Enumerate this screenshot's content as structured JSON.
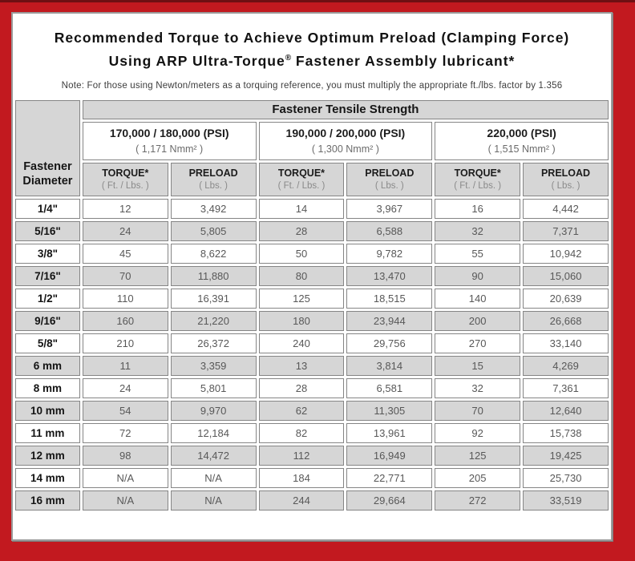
{
  "frame": {
    "red": "#c2191f",
    "top_line": "#6f1013",
    "gray_cell": "#d6d6d6",
    "border_gray": "#858585"
  },
  "title": {
    "line1": "Recommended Torque to Achieve Optimum Preload (Clamping Force)",
    "line2_pre": "Using ARP Ultra-Torque",
    "line2_sup": "®",
    "line2_post": " Fastener Assembly lubricant*",
    "note": "Note: For those using Newton/meters as a torquing reference, you must multiply the appropriate ft./lbs. factor by 1.356"
  },
  "table": {
    "corner_line1": "Fastener",
    "corner_line2": "Diameter",
    "tensile_header": "Fastener Tensile Strength",
    "strength_groups": [
      {
        "psi": "170,000 / 180,000 (PSI)",
        "nmm": "( 1,171 Nmm² )"
      },
      {
        "psi": "190,000 / 200,000 (PSI)",
        "nmm": "( 1,300 Nmm² )"
      },
      {
        "psi": "220,000 (PSI)",
        "nmm": "( 1,515 Nmm² )"
      }
    ],
    "col_headers": {
      "torque_label": "TORQUE*",
      "torque_sub": "( Ft. / Lbs. )",
      "preload_label": "PRELOAD",
      "preload_sub": "( Lbs. )"
    },
    "rows": [
      {
        "diameter": "1/4\"",
        "values": [
          "12",
          "3,492",
          "14",
          "3,967",
          "16",
          "4,442"
        ]
      },
      {
        "diameter": "5/16\"",
        "values": [
          "24",
          "5,805",
          "28",
          "6,588",
          "32",
          "7,371"
        ]
      },
      {
        "diameter": "3/8\"",
        "values": [
          "45",
          "8,622",
          "50",
          "9,782",
          "55",
          "10,942"
        ]
      },
      {
        "diameter": "7/16\"",
        "values": [
          "70",
          "11,880",
          "80",
          "13,470",
          "90",
          "15,060"
        ]
      },
      {
        "diameter": "1/2\"",
        "values": [
          "110",
          "16,391",
          "125",
          "18,515",
          "140",
          "20,639"
        ]
      },
      {
        "diameter": "9/16\"",
        "values": [
          "160",
          "21,220",
          "180",
          "23,944",
          "200",
          "26,668"
        ]
      },
      {
        "diameter": "5/8\"",
        "values": [
          "210",
          "26,372",
          "240",
          "29,756",
          "270",
          "33,140"
        ]
      },
      {
        "diameter": "6 mm",
        "values": [
          "11",
          "3,359",
          "13",
          "3,814",
          "15",
          "4,269"
        ]
      },
      {
        "diameter": "8 mm",
        "values": [
          "24",
          "5,801",
          "28",
          "6,581",
          "32",
          "7,361"
        ]
      },
      {
        "diameter": "10 mm",
        "values": [
          "54",
          "9,970",
          "62",
          "11,305",
          "70",
          "12,640"
        ]
      },
      {
        "diameter": "11 mm",
        "values": [
          "72",
          "12,184",
          "82",
          "13,961",
          "92",
          "15,738"
        ]
      },
      {
        "diameter": "12 mm",
        "values": [
          "98",
          "14,472",
          "112",
          "16,949",
          "125",
          "19,425"
        ]
      },
      {
        "diameter": "14 mm",
        "values": [
          "N/A",
          "N/A",
          "184",
          "22,771",
          "205",
          "25,730"
        ]
      },
      {
        "diameter": "16 mm",
        "values": [
          "N/A",
          "N/A",
          "244",
          "29,664",
          "272",
          "33,519"
        ]
      }
    ]
  }
}
